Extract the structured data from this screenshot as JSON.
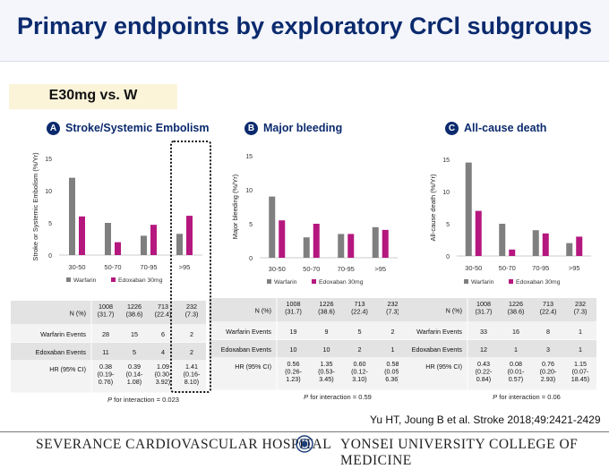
{
  "title": "Primary endpoints by exploratory CrCl subgroups",
  "subtitle": "E30mg vs. W",
  "reference": "Yu HT, Joung B et al. Stroke 2018;49:2421-2429",
  "footer": {
    "left": "SEVERANCE CARDIOVASCULAR HOSPITAL",
    "right": "YONSEI UNIVERSITY COLLEGE OF MEDICINE"
  },
  "colors": {
    "warfarin": "#7f7f7f",
    "edoxaban": "#b5177f",
    "title": "#0b2a6e"
  },
  "table_labels": {
    "n": "N (%)",
    "warfarin_events": "Warfarin Events",
    "edoxaban_events": "Edoxaban Events",
    "hr": "HR (95% CI)"
  },
  "chart_data": [
    {
      "type": "bar",
      "badge": "A",
      "title": "Stroke/Systemic Embolism",
      "ylabel": "Stroke or Systemic Embolism (%/Yr)",
      "ylim": [
        0,
        15
      ],
      "yticks": [
        0,
        5,
        10,
        15
      ],
      "categories": [
        "30-50",
        "50-70",
        "70-95",
        ">95"
      ],
      "series": [
        {
          "name": "Warfarin",
          "values": [
            12,
            5,
            3,
            3.3
          ]
        },
        {
          "name": "Edoxaban 30mg",
          "values": [
            6,
            2,
            4.7,
            6.1
          ]
        }
      ],
      "table": {
        "n": [
          "1008\n(31.7)",
          "1226\n(38.6)",
          "713\n(22.4)",
          "232\n(7.3)"
        ],
        "warfarin_events": [
          "28",
          "15",
          "6",
          "2"
        ],
        "edoxaban_events": [
          "11",
          "5",
          "4",
          "2"
        ],
        "hr": [
          "0.38\n(0.19-\n0.76)",
          "0.39\n(0.14-\n1.08)",
          "1.09\n(0.30-\n3.92)",
          "1.41\n(0.16-\n8.10)"
        ]
      },
      "p_label": "P",
      "p_text": " for interaction = 0.023"
    },
    {
      "type": "bar",
      "badge": "B",
      "title": "Major bleeding",
      "ylabel": "Major bleeding (%/Yr)",
      "ylim": [
        0,
        15
      ],
      "yticks": [
        0,
        5,
        10,
        15
      ],
      "categories": [
        "30-50",
        "50-70",
        "70-95",
        ">95"
      ],
      "series": [
        {
          "name": "Warfarin",
          "values": [
            9,
            3,
            3.5,
            4.5
          ]
        },
        {
          "name": "Edoxaban 30mg",
          "values": [
            5.5,
            5,
            3.5,
            4.1
          ]
        }
      ],
      "table": {
        "n": [
          "1008\n(31.7)",
          "1226\n(38.6)",
          "713\n(22.4)",
          "232\n(7.3)"
        ],
        "warfarin_events": [
          "19",
          "9",
          "5",
          "2"
        ],
        "edoxaban_events": [
          "10",
          "10",
          "2",
          "1"
        ],
        "hr": [
          "0.56\n(0.26-\n1.23)",
          "1.35\n(0.53-\n3.45)",
          "0.60\n(0.12-\n3.10)",
          "0.58\n(0.05-\n6.36)"
        ]
      },
      "p_label": "P",
      "p_text": " for interaction = 0.59"
    },
    {
      "type": "bar",
      "badge": "C",
      "title": "All-cause death",
      "ylabel": "All-cause death (%/Yr)",
      "ylim": [
        0,
        15
      ],
      "yticks": [
        0,
        5,
        10,
        15
      ],
      "categories": [
        "30-50",
        "50-70",
        "70-95",
        ">95"
      ],
      "series": [
        {
          "name": "Warfarin",
          "values": [
            14.5,
            5,
            4,
            2
          ]
        },
        {
          "name": "Edoxaban 30mg",
          "values": [
            7,
            1,
            3.5,
            3
          ]
        }
      ],
      "table": {
        "n": [
          "1008\n(31.7)",
          "1226\n(38.6)",
          "713\n(22.4)",
          "232\n(7.3)"
        ],
        "warfarin_events": [
          "33",
          "16",
          "8",
          "1"
        ],
        "edoxaban_events": [
          "12",
          "1",
          "3",
          "1"
        ],
        "hr": [
          "0.43\n(0.22-\n0.84)",
          "0.08\n(0.01-\n0.57)",
          "0.76\n(0.20-\n2.93)",
          "1.15\n(0.07-\n18.45)"
        ]
      },
      "p_label": "P",
      "p_text": " for interaction = 0.06"
    }
  ]
}
